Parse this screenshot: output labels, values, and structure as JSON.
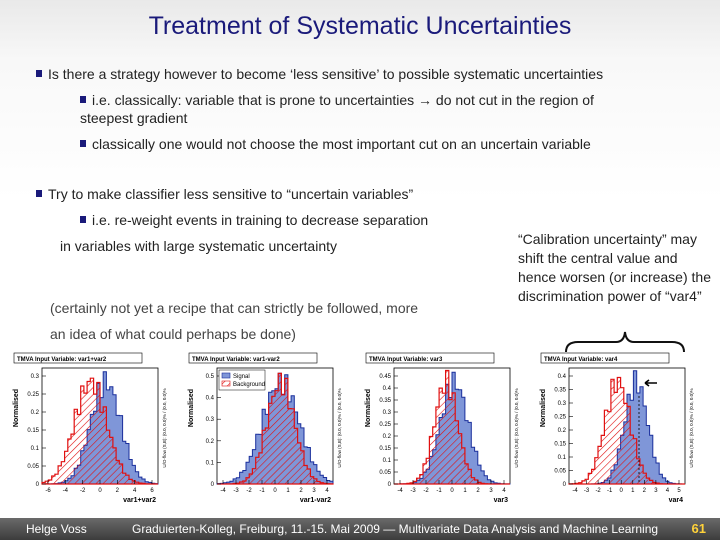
{
  "slide": {
    "title": "Treatment of Systematic Uncertainties"
  },
  "bullets": [
    {
      "text": "Is there a strategy however to become ‘less sensitive’ to possible systematic uncertainties"
    },
    {
      "text": "i.e. classically:   variable that is prone to uncertainties  → do not cut in the region of"
    },
    {
      "text": "steepest gradient"
    },
    {
      "text": "classically one would not choose the most important cut on an uncertain variable"
    },
    {
      "text": "Try to make classifier less sensitive to “uncertain variables”"
    },
    {
      "text": "i.e. re-weight events in training to decrease separation"
    },
    {
      "text": "in  variables with large systematic uncertainty"
    }
  ],
  "notes": [
    {
      "text": "(certainly not yet a recipe that can strictly be followed, more"
    },
    {
      "text": "an idea of what could perhaps be done)"
    }
  ],
  "callout": {
    "text": "“Calibration uncertainty” may shift the central value and hence worsen (or increase)  the discrimination power of “var4”"
  },
  "plots": [
    {
      "header": "TMVA Input Variable: var1+var2",
      "xlabel": "var1+var2",
      "ylabel": "Normalised",
      "yticks": [
        "0.3",
        "0.25",
        "0.2",
        "0.15",
        "0.1",
        "0.05",
        "0"
      ],
      "xticks": [
        "-6",
        "-4",
        "-2",
        "0",
        "2",
        "4",
        "6"
      ],
      "side_label": "U/O-flow (S,B): (0.0, 0.0)% / (0.0, 0.0)%",
      "legend": null
    },
    {
      "header": "TMVA Input Variable: var1-var2",
      "xlabel": "var1-var2",
      "ylabel": "Normalised",
      "yticks": [
        "0.5",
        "0.4",
        "0.3",
        "0.2",
        "0.1",
        "0"
      ],
      "xticks": [
        "-4",
        "-3",
        "-2",
        "-1",
        "0",
        "1",
        "2",
        "3",
        "4"
      ],
      "side_label": "U/O-flow (S,B): (0.0, 0.0)% / (0.0, 0.0)%",
      "legend": {
        "signal": "Signal",
        "background": "Background"
      }
    },
    {
      "header": "TMVA Input Variable: var3",
      "xlabel": "var3",
      "ylabel": "Normalised",
      "yticks": [
        "0.45",
        "0.4",
        "0.35",
        "0.3",
        "0.25",
        "0.2",
        "0.15",
        "0.1",
        "0.05",
        "0"
      ],
      "xticks": [
        "-4",
        "-3",
        "-2",
        "-1",
        "0",
        "1",
        "2",
        "3",
        "4"
      ],
      "side_label": "U/O-flow (S,B): (0.0, 0.0)% / (0.0, 0.0)%",
      "legend": null
    },
    {
      "header": "TMVA Input Variable: var4",
      "xlabel": "var4",
      "ylabel": "Normalised",
      "yticks": [
        "0.4",
        "0.35",
        "0.3",
        "0.25",
        "0.2",
        "0.15",
        "0.1",
        "0.05",
        "0"
      ],
      "xticks": [
        "-4",
        "-3",
        "-2",
        "-1",
        "0",
        "1",
        "2",
        "3",
        "4",
        "5"
      ],
      "side_label": "U/O-flow (S,B): (0.0, 0.0)% / (0.0, 0.0)%",
      "legend": null
    }
  ],
  "footer": {
    "author": "Helge Voss",
    "event": "Graduierten-Kolleg, Freiburg,  11.-15. Mai 2009  — Multivariate Data Analysis and Machine Learning",
    "page": "61"
  },
  "colors": {
    "title": "#1a1a7a",
    "signal_fill": "#7f96d8",
    "signal_line": "#1a2f9c",
    "background_line": "#e01010",
    "footer_bg": "#4a4a4a",
    "page_number": "#ffd23a"
  }
}
